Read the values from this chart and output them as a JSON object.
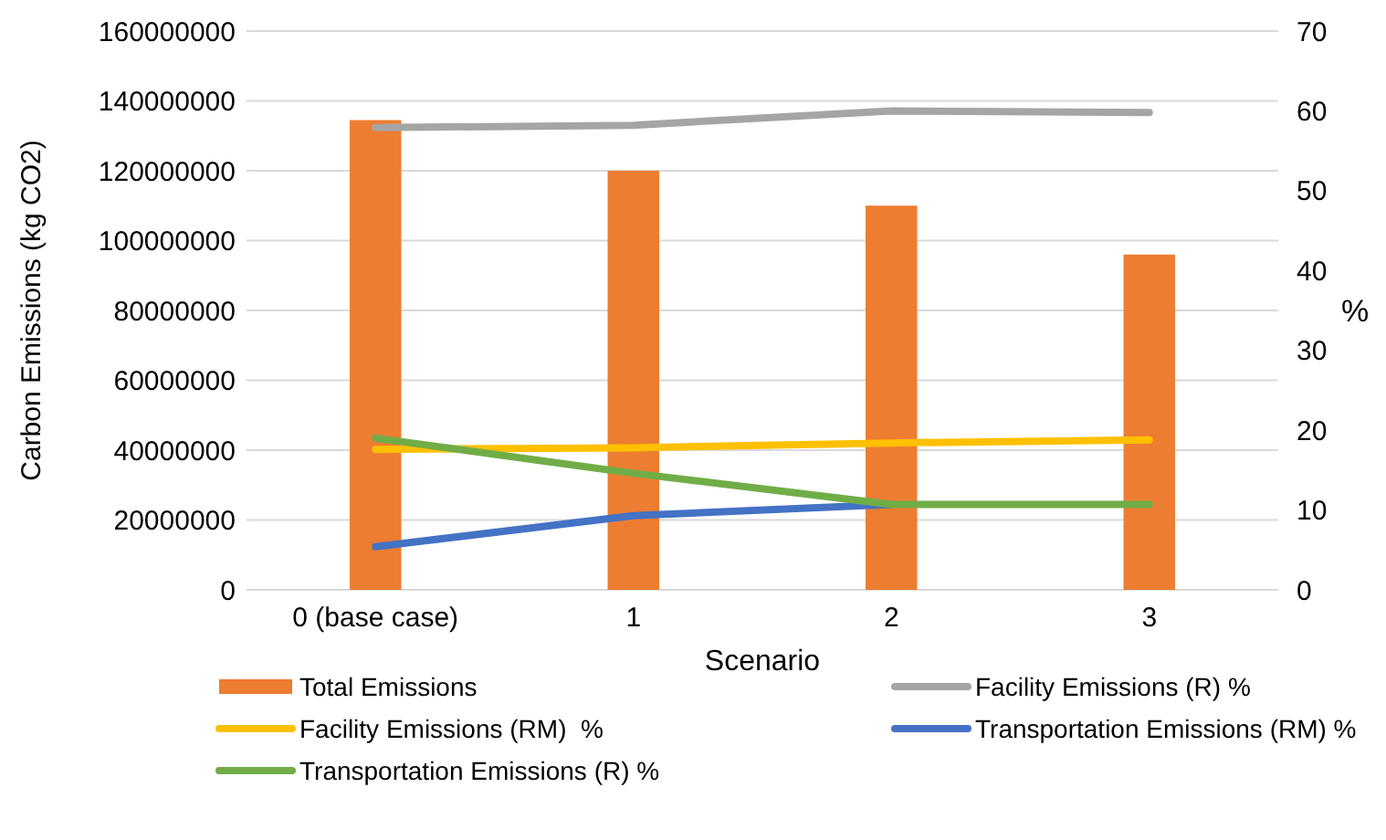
{
  "chart_data": {
    "type": "bar",
    "xlabel": "Scenario",
    "ylabel": "Carbon Emissions (kg CO2)",
    "y2label": "%",
    "categories": [
      "0 (base case)",
      "1",
      "2",
      "3"
    ],
    "series": [
      {
        "name": "Total Emissions",
        "color": "#ed7d31",
        "values": [
          134500000,
          120000000,
          110000000,
          96000000
        ]
      },
      {
        "name": "Facility Emissions (R) %",
        "type": "line",
        "axis": "y2",
        "color": "#a5a5a5",
        "values": [
          57.9,
          58.2,
          60,
          59.8
        ]
      },
      {
        "name": "Facility Emissions (RM)  %",
        "type": "line",
        "axis": "y2",
        "color": "#ffc000",
        "values": [
          17.6,
          17.8,
          18.4,
          18.8
        ]
      },
      {
        "name": "Transportation Emissions (RM) %",
        "type": "line",
        "axis": "y2",
        "color": "#4472c4",
        "values": [
          5.4,
          9.3,
          10.7,
          null
        ]
      },
      {
        "name": "Transportation Emissions (R) %",
        "type": "line",
        "axis": "y2",
        "color": "#70ad47",
        "values": [
          19,
          14.6,
          10.7,
          10.7
        ]
      }
    ],
    "ylim": [
      0,
      160000000
    ],
    "yticks": [
      0,
      20000000,
      40000000,
      60000000,
      80000000,
      100000000,
      120000000,
      140000000,
      160000000
    ],
    "y2lim": [
      0,
      70
    ],
    "y2ticks": [
      0,
      10,
      20,
      30,
      40,
      50,
      60,
      70
    ],
    "grid": "y",
    "legend": "bottom",
    "marker": "none",
    "line_style": "solid"
  }
}
